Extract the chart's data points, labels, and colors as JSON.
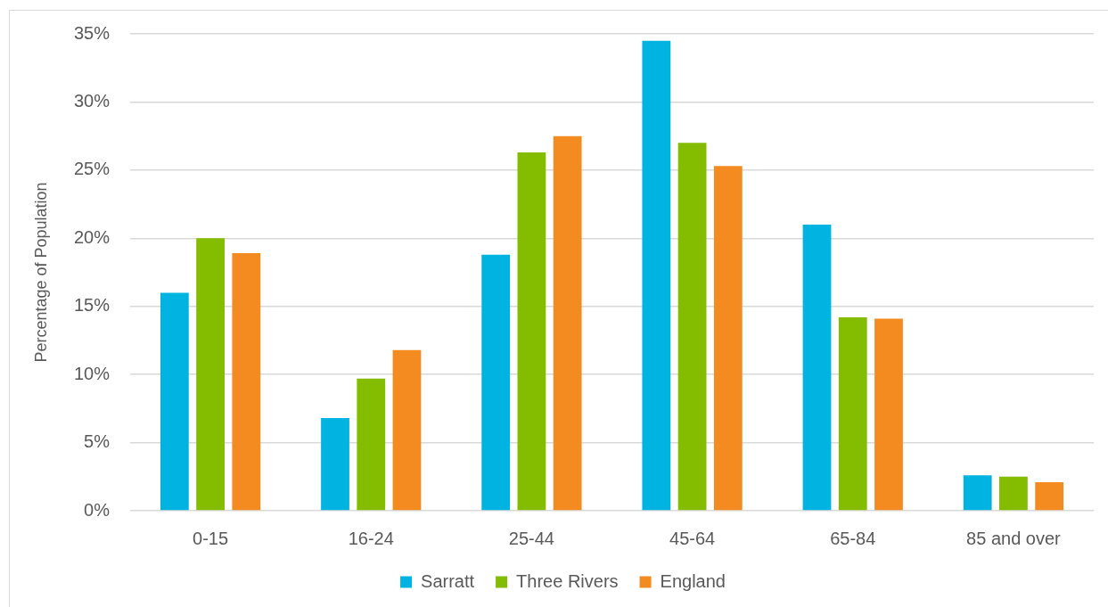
{
  "chart_data": {
    "type": "bar",
    "ylabel": "Percentage of Population",
    "categories": [
      "0-15",
      "16-24",
      "25-44",
      "45-64",
      "65-84",
      "85 and over"
    ],
    "series": [
      {
        "name": "Sarratt",
        "color": "#00b3e0",
        "values": [
          16.0,
          6.8,
          18.8,
          34.5,
          21.0,
          2.6
        ]
      },
      {
        "name": "Three Rivers",
        "color": "#84bd00",
        "values": [
          20.0,
          9.7,
          26.3,
          27.0,
          14.2,
          2.5
        ]
      },
      {
        "name": "England",
        "color": "#f48b21",
        "values": [
          18.9,
          11.8,
          27.5,
          25.3,
          14.1,
          2.1
        ]
      }
    ],
    "ylim": [
      0,
      35
    ],
    "yticks": [
      {
        "value": 0,
        "label": "0%"
      },
      {
        "value": 5,
        "label": "5%"
      },
      {
        "value": 10,
        "label": "10%"
      },
      {
        "value": 15,
        "label": "15%"
      },
      {
        "value": 20,
        "label": "20%"
      },
      {
        "value": 25,
        "label": "25%"
      },
      {
        "value": 30,
        "label": "30%"
      },
      {
        "value": 35,
        "label": "35%"
      }
    ],
    "grid": "y",
    "legend": "bottom"
  }
}
